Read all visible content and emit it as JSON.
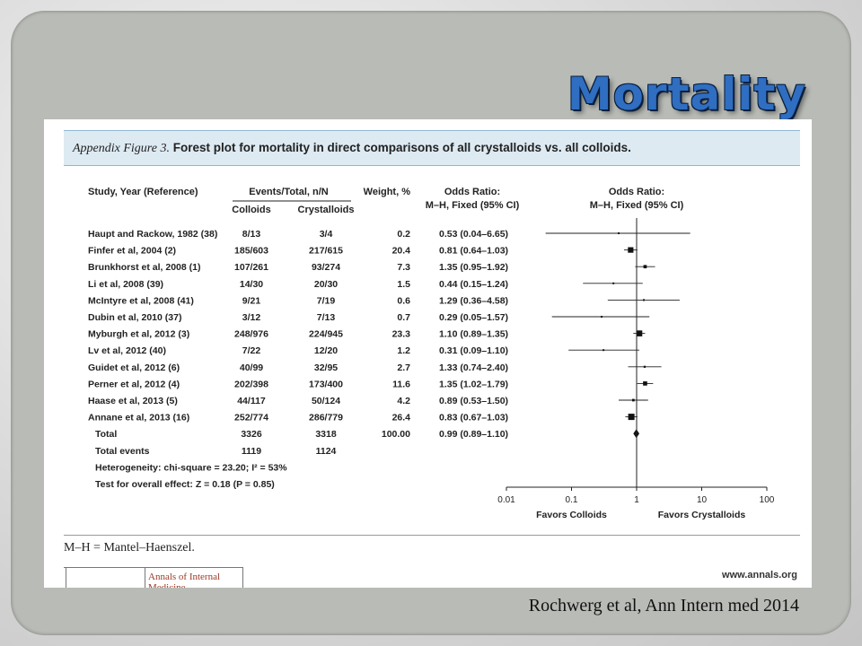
{
  "slide": {
    "title": "Mortality",
    "citation": "Rochwerg et al, Ann Intern med 2014"
  },
  "figure": {
    "label": "Appendix Figure 3.",
    "caption": "Forest plot for mortality in direct comparisons of all crystalloids vs. all colloids.",
    "abbreviation": "M–H = Mantel–Haenszel.",
    "journal": "Annals of Internal Medicine",
    "website": "www.annals.org"
  },
  "chart_data": {
    "type": "forest",
    "columns": {
      "study": "Study, Year (Reference)",
      "events_group": "Events/Total, n/N",
      "colloids": "Colloids",
      "crystalloids": "Crystalloids",
      "weight": "Weight, %",
      "or_text_line1": "Odds Ratio:",
      "or_text_line2": "M–H, Fixed (95% CI)",
      "or_plot_line1": "Odds Ratio:",
      "or_plot_line2": "M–H, Fixed (95% CI)"
    },
    "studies": [
      {
        "study": "Haupt and Rackow, 1982 (38)",
        "colloids": "8/13",
        "crystalloids": "3/4",
        "weight": 0.2,
        "or_text": "0.53 (0.04–6.65)",
        "or": 0.53,
        "lo": 0.04,
        "hi": 6.65
      },
      {
        "study": "Finfer et al, 2004 (2)",
        "colloids": "185/603",
        "crystalloids": "217/615",
        "weight": 20.4,
        "or_text": "0.81 (0.64–1.03)",
        "or": 0.81,
        "lo": 0.64,
        "hi": 1.03
      },
      {
        "study": "Brunkhorst et al, 2008 (1)",
        "colloids": "107/261",
        "crystalloids": "93/274",
        "weight": 7.3,
        "or_text": "1.35 (0.95–1.92)",
        "or": 1.35,
        "lo": 0.95,
        "hi": 1.92
      },
      {
        "study": "Li et al, 2008 (39)",
        "colloids": "14/30",
        "crystalloids": "20/30",
        "weight": 1.5,
        "or_text": "0.44 (0.15–1.24)",
        "or": 0.44,
        "lo": 0.15,
        "hi": 1.24
      },
      {
        "study": "McIntyre et al, 2008 (41)",
        "colloids": "9/21",
        "crystalloids": "7/19",
        "weight": 0.6,
        "or_text": "1.29 (0.36–4.58)",
        "or": 1.29,
        "lo": 0.36,
        "hi": 4.58
      },
      {
        "study": "Dubin et al, 2010 (37)",
        "colloids": "3/12",
        "crystalloids": "7/13",
        "weight": 0.7,
        "or_text": "0.29 (0.05–1.57)",
        "or": 0.29,
        "lo": 0.05,
        "hi": 1.57
      },
      {
        "study": "Myburgh et al, 2012 (3)",
        "colloids": "248/976",
        "crystalloids": "224/945",
        "weight": 23.3,
        "or_text": "1.10 (0.89–1.35)",
        "or": 1.1,
        "lo": 0.89,
        "hi": 1.35
      },
      {
        "study": "Lv et al, 2012 (40)",
        "colloids": "7/22",
        "crystalloids": "12/20",
        "weight": 1.2,
        "or_text": "0.31 (0.09–1.10)",
        "or": 0.31,
        "lo": 0.09,
        "hi": 1.1
      },
      {
        "study": "Guidet et al, 2012 (6)",
        "colloids": "40/99",
        "crystalloids": "32/95",
        "weight": 2.7,
        "or_text": "1.33 (0.74–2.40)",
        "or": 1.33,
        "lo": 0.74,
        "hi": 2.4
      },
      {
        "study": "Perner et al, 2012 (4)",
        "colloids": "202/398",
        "crystalloids": "173/400",
        "weight": 11.6,
        "or_text": "1.35 (1.02–1.79)",
        "or": 1.35,
        "lo": 1.02,
        "hi": 1.79
      },
      {
        "study": "Haase et al, 2013 (5)",
        "colloids": "44/117",
        "crystalloids": "50/124",
        "weight": 4.2,
        "or_text": "0.89 (0.53–1.50)",
        "or": 0.89,
        "lo": 0.53,
        "hi": 1.5
      },
      {
        "study": "Annane et al, 2013 (16)",
        "colloids": "252/774",
        "crystalloids": "286/779",
        "weight": 26.4,
        "or_text": "0.83 (0.67–1.03)",
        "or": 0.83,
        "lo": 0.67,
        "hi": 1.03
      }
    ],
    "total": {
      "label": "Total",
      "colloids": "3326",
      "crystalloids": "3318",
      "weight": "100.00",
      "or_text": "0.99 (0.89–1.10)",
      "or": 0.99,
      "lo": 0.89,
      "hi": 1.1
    },
    "total_events": {
      "label": "Total events",
      "colloids": "1119",
      "crystalloids": "1124"
    },
    "heterogeneity": "Heterogeneity: chi-square = 23.20; I² = 53%",
    "overall_effect": "Test for overall effect: Z = 0.18 (P = 0.85)",
    "x_axis": {
      "scale": "log",
      "ticks": [
        0.01,
        0.1,
        1,
        10,
        100
      ],
      "tick_labels": [
        "0.01",
        "0.1",
        "1",
        "10",
        "100"
      ],
      "left_label": "Favors Colloids",
      "right_label": "Favors Crystalloids"
    }
  }
}
